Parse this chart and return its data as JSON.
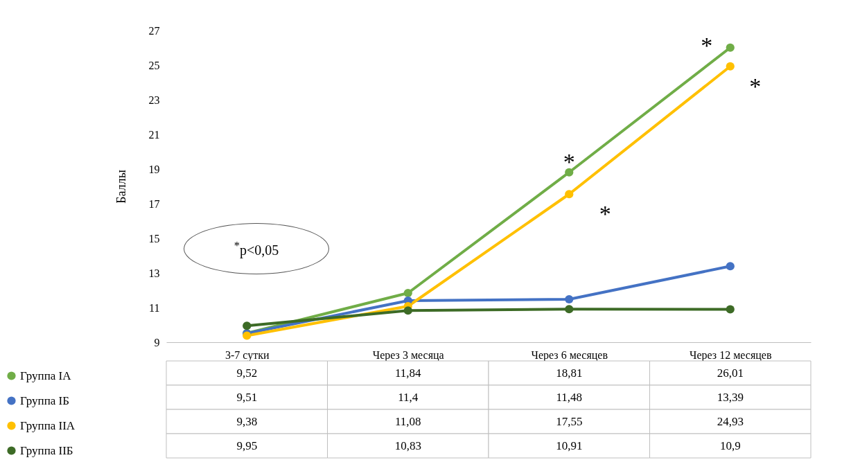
{
  "chart_data": {
    "type": "line",
    "ylabel": "Баллы",
    "categories": [
      "3-7 сутки",
      "Через 3 месяца",
      "Через 6 месяцев",
      "Через 12 месяцев"
    ],
    "series": [
      {
        "name": "Группа IА",
        "color": "#70ad47",
        "values": [
          9.52,
          11.84,
          18.81,
          26.01
        ],
        "value_labels": [
          "9,52",
          "11,84",
          "18,81",
          "26,01"
        ]
      },
      {
        "name": "Группа IБ",
        "color": "#4472c4",
        "values": [
          9.51,
          11.4,
          11.48,
          13.39
        ],
        "value_labels": [
          "9,51",
          "11,4",
          "11,48",
          "13,39"
        ]
      },
      {
        "name": "Группа IIА",
        "color": "#ffc000",
        "values": [
          9.38,
          11.08,
          17.55,
          24.93
        ],
        "value_labels": [
          "9,38",
          "11,08",
          "17,55",
          "24,93"
        ]
      },
      {
        "name": "Группа IIБ",
        "color": "#3d6b26",
        "values": [
          9.95,
          10.83,
          10.91,
          10.9
        ],
        "value_labels": [
          "9,95",
          "10,83",
          "10,91",
          "10,9"
        ]
      }
    ],
    "ylim": [
      9,
      27
    ],
    "yticks": [
      9,
      11,
      13,
      15,
      17,
      19,
      21,
      23,
      25,
      27
    ],
    "grid": false,
    "legend": "bottom left",
    "marker": "circle",
    "line_style": "solid",
    "annotations": [
      "$^{*}$p<0,05",
      {
        "text": "*",
        "x": "Через 6 месяцев",
        "y": 18.81
      },
      {
        "text": "*",
        "x": "Через 12 месяцев",
        "y": 26.01
      },
      {
        "text": "*",
        "x": "Через 6 месяцев",
        "y": 17.55
      },
      {
        "text": "*",
        "x": "Через 12 месяцев",
        "y": 24.93
      }
    ]
  }
}
